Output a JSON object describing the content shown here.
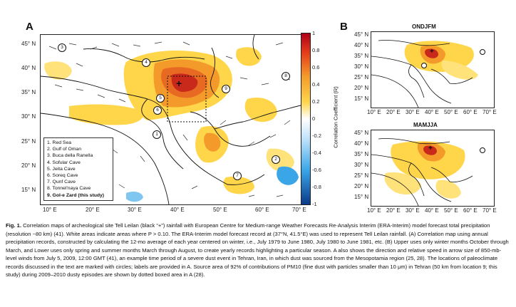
{
  "panel_a": {
    "letter": "A",
    "lat_labels": [
      "45° N",
      "40° N",
      "35° N",
      "30° N",
      "25° N",
      "20° N",
      "15° N"
    ],
    "lon_labels": [
      "10° E",
      "20° E",
      "30° E",
      "40° E",
      "50° E",
      "60° E",
      "70° E"
    ],
    "colorbar": {
      "ticks": [
        "1",
        "0.8",
        "0.6",
        "0.4",
        "0.2",
        "0",
        "-0.2",
        "-0.4",
        "-0.6",
        "-0.8",
        "-1"
      ],
      "label": "Correlation Coefficient (R)"
    },
    "site_marker": "+",
    "legend": [
      "1. Red Sea",
      "2. Gulf of Oman",
      "3. Buca della Ranella",
      "4. Sofular Cave",
      "5. Jeita Cave",
      "6. Soreq Cave",
      "7. Qunf Cave",
      "8. Tonnel'naya Cave",
      "9. Gol-e Zard (this study)"
    ],
    "map_numbers": [
      "1",
      "2",
      "3",
      "4",
      "5",
      "6",
      "7",
      "8",
      "9"
    ]
  },
  "panel_b": {
    "letter": "B",
    "top": {
      "title": "ONDJFM",
      "lat_labels": [
        "45° N",
        "40° N",
        "35° N",
        "30° N",
        "25° N",
        "20° N",
        "15° N"
      ],
      "lon_labels": [
        "10° E",
        "20° E",
        "30° E",
        "40° E",
        "50° E",
        "60° E",
        "70° E"
      ]
    },
    "bottom": {
      "title": "MAMJJA",
      "lat_labels": [
        "45° N",
        "40° N",
        "35° N",
        "30° N",
        "25° N",
        "20° N",
        "15° N"
      ],
      "lon_labels": [
        "10° E",
        "20° E",
        "30° E",
        "40° E",
        "50° E",
        "60° E",
        "70° E"
      ]
    }
  },
  "caption": {
    "fig": "Fig. 1.",
    "text": "Correlation maps of archeological site Tell Leilan (black “+”) rainfall with European Centre for Medium-range Weather Forecasts Re-Analysis Interim (ERA-Interim) model forecast total precipitation (resolution ~80 km) (41). White areas indicate areas where P > 0.10. The ERA-Interim model forecast record at (37°N, 41.5°E) was used to represent Tell Leilan rainfall. (A) Correlation map using annual precipitation records, constructed by calculating the 12-mo average of each year centered on winter, i.e., July 1979 to June 1980, July 1980 to June 1981, etc. (B) Upper uses only winter months October through March, and Lower uses only spring and summer months March through August, to create yearly records highlighting a particular season. A also shows the direction and relative speed in arrow size of 850-mb-level winds from July 5, 2009, 12:00 GMT (41), an example time period of a severe dust event in Tehran, Iran, in which dust was sourced from the Mesopotamia region (25, 28). The locations of paleoclimate records discussed in the text are marked with circles; labels are provided in A. Source area of 92% of contributions of PM10 (fine dust with particles smaller than 10 μm) in Tehran (50 km from location 9; this study) during 2009–2010 dusty episodes are shown by dotted boxed area in A (28)."
  },
  "colors": {
    "strong_pos": "#d93a1a",
    "mid_pos": "#f39a2a",
    "weak_pos": "#ffd54a",
    "neg": "#3aa6e8",
    "coast": "#111111"
  }
}
